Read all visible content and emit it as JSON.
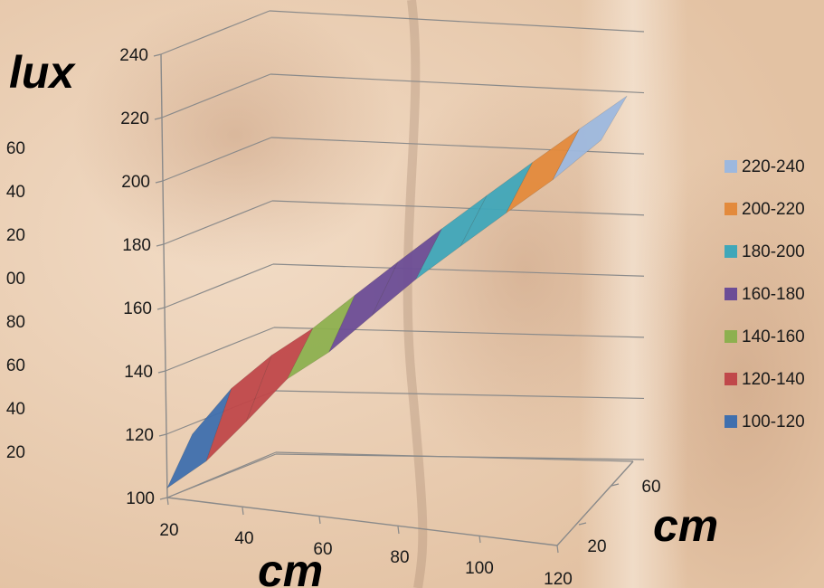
{
  "chart_data": {
    "type": "surface",
    "title": "",
    "zlabel": "lux",
    "xlabel": "cm",
    "ylabel": "cm",
    "zlim": [
      100,
      240
    ],
    "z_ticks": [
      "100",
      "120",
      "140",
      "160",
      "180",
      "200",
      "220",
      "240"
    ],
    "x_ticks": [
      "20",
      "40",
      "60",
      "80",
      "100",
      "120"
    ],
    "y_ticks": [
      "20",
      "60"
    ],
    "ghost_ticks": [
      "60",
      "40",
      "20",
      "00",
      "80",
      "60",
      "40",
      "20"
    ],
    "legend": [
      {
        "label": "220-240",
        "color": "#9db8de"
      },
      {
        "label": "200-220",
        "color": "#e38a3c"
      },
      {
        "label": "180-200",
        "color": "#3fa7b9"
      },
      {
        "label": "160-180",
        "color": "#6c4d96"
      },
      {
        "label": "140-160",
        "color": "#8db04f"
      },
      {
        "label": "120-140",
        "color": "#c0484a"
      },
      {
        "label": "100-120",
        "color": "#3f6fae"
      }
    ],
    "legend_position": "right",
    "surface": {
      "x": [
        20,
        30,
        40,
        50,
        60,
        70,
        80,
        90,
        100,
        110,
        120
      ],
      "series": [
        {
          "name": "y=20",
          "values": [
            103,
            113,
            127,
            142,
            152,
            165,
            178,
            190,
            202,
            214,
            228
          ]
        },
        {
          "name": "y=60",
          "values": [
            108,
            124,
            136,
            146,
            158,
            170,
            182,
            194,
            206,
            218,
            230
          ]
        }
      ]
    }
  }
}
